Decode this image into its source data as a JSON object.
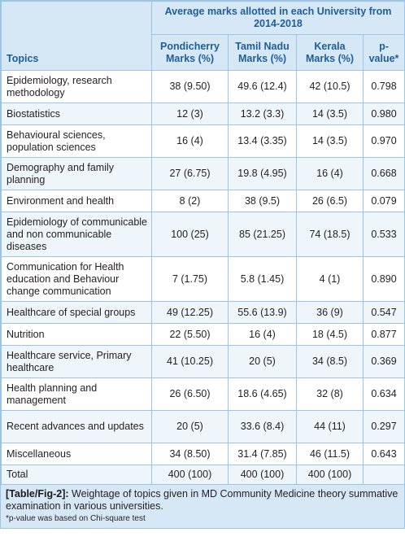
{
  "header": {
    "topics": "Topics",
    "group": "Average marks allotted in each University from 2014-2018",
    "col1": "Pondicherry Marks (%)",
    "col2": "Tamil Nadu Marks (%)",
    "col3": "Kerala Marks (%)",
    "col4": "p-value*"
  },
  "rows": [
    {
      "topic": "Epidemiology, research methodology",
      "c1": "38 (9.50)",
      "c2": "49.6 (12.4)",
      "c3": "42 (10.5)",
      "p": "0.798"
    },
    {
      "topic": "Biostatistics",
      "c1": "12 (3)",
      "c2": "13.2 (3.3)",
      "c3": "14 (3.5)",
      "p": "0.980"
    },
    {
      "topic": "Behavioural sciences, population sciences",
      "c1": "16 (4)",
      "c2": "13.4 (3.35)",
      "c3": "14 (3.5)",
      "p": "0.970"
    },
    {
      "topic": "Demography and family planning",
      "c1": "27 (6.75)",
      "c2": "19.8 (4.95)",
      "c3": "16 (4)",
      "p": "0.668"
    },
    {
      "topic": "Environment and health",
      "c1": "8 (2)",
      "c2": "38 (9.5)",
      "c3": "26 (6.5)",
      "p": "0.079"
    },
    {
      "topic": "Epidemiology of communicable and non communicable diseases",
      "c1": "100 (25)",
      "c2": "85 (21.25)",
      "c3": "74 (18.5)",
      "p": "0.533"
    },
    {
      "topic": "Communication for Health education and Behaviour change communication",
      "c1": "7 (1.75)",
      "c2": "5.8 (1.45)",
      "c3": "4 (1)",
      "p": "0.890"
    },
    {
      "topic": "Healthcare of special groups",
      "c1": "49 (12.25)",
      "c2": "55.6 (13.9)",
      "c3": "36 (9)",
      "p": "0.547"
    },
    {
      "topic": "Nutrition",
      "c1": "22 (5.50)",
      "c2": "16 (4)",
      "c3": "18 (4.5)",
      "p": "0.877"
    },
    {
      "topic": "Healthcare service, Primary healthcare",
      "c1": "41 (10.25)",
      "c2": "20 (5)",
      "c3": "34 (8.5)",
      "p": "0.369"
    },
    {
      "topic": "Health planning and management",
      "c1": "26 (6.50)",
      "c2": "18.6 (4.65)",
      "c3": "32 (8)",
      "p": "0.634"
    },
    {
      "topic": "Recent advances and updates",
      "c1": "20 (5)",
      "c2": "33.6 (8.4)",
      "c3": "44 (11)",
      "p": "0.297"
    },
    {
      "topic": "Miscellaneous",
      "c1": "34 (8.50)",
      "c2": "31.4 (7.85)",
      "c3": "46 (11.5)",
      "p": "0.643"
    },
    {
      "topic": "Total",
      "c1": "400 (100)",
      "c2": "400 (100)",
      "c3": "400 (100)",
      "p": ""
    }
  ],
  "caption": {
    "label": "[Table/Fig-2]:",
    "text": "Weightage of topics given in MD Community Medicine theory summative examination in various universities.",
    "footnote": "*p-value was based on Chi-square test"
  }
}
